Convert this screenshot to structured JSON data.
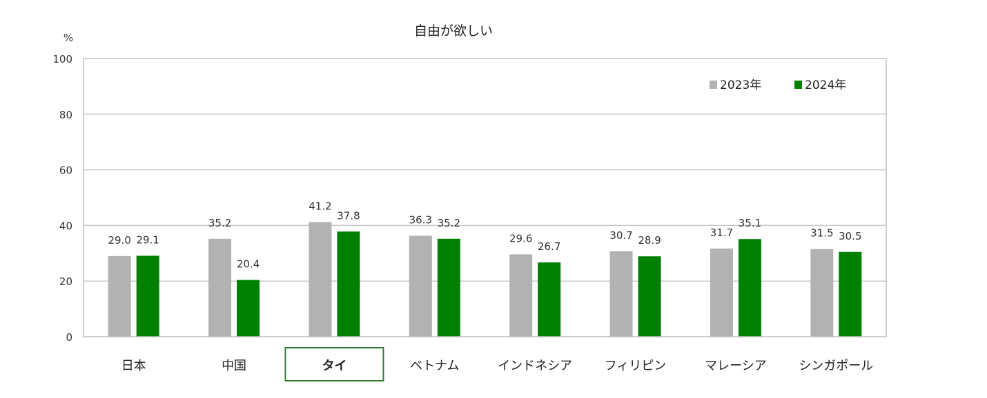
{
  "chart_data": {
    "type": "bar",
    "title": "自由が欲しい",
    "unit": "%",
    "ylim": [
      0,
      100
    ],
    "yticks": [
      0,
      20,
      40,
      60,
      80,
      100
    ],
    "grid": true,
    "legend_position": "top-right",
    "categories": [
      "日本",
      "中国",
      "タイ",
      "ベトナム",
      "インドネシア",
      "フィリピン",
      "マレーシア",
      "シンガポール"
    ],
    "highlighted_category": "タイ",
    "series": [
      {
        "name": "2023年",
        "color": "#b2b2b2",
        "values": [
          29.0,
          35.2,
          41.2,
          36.3,
          29.6,
          30.7,
          31.7,
          31.5
        ]
      },
      {
        "name": "2024年",
        "color": "#008000",
        "values": [
          29.1,
          20.4,
          37.8,
          35.2,
          26.7,
          28.9,
          35.1,
          30.5
        ]
      }
    ]
  }
}
